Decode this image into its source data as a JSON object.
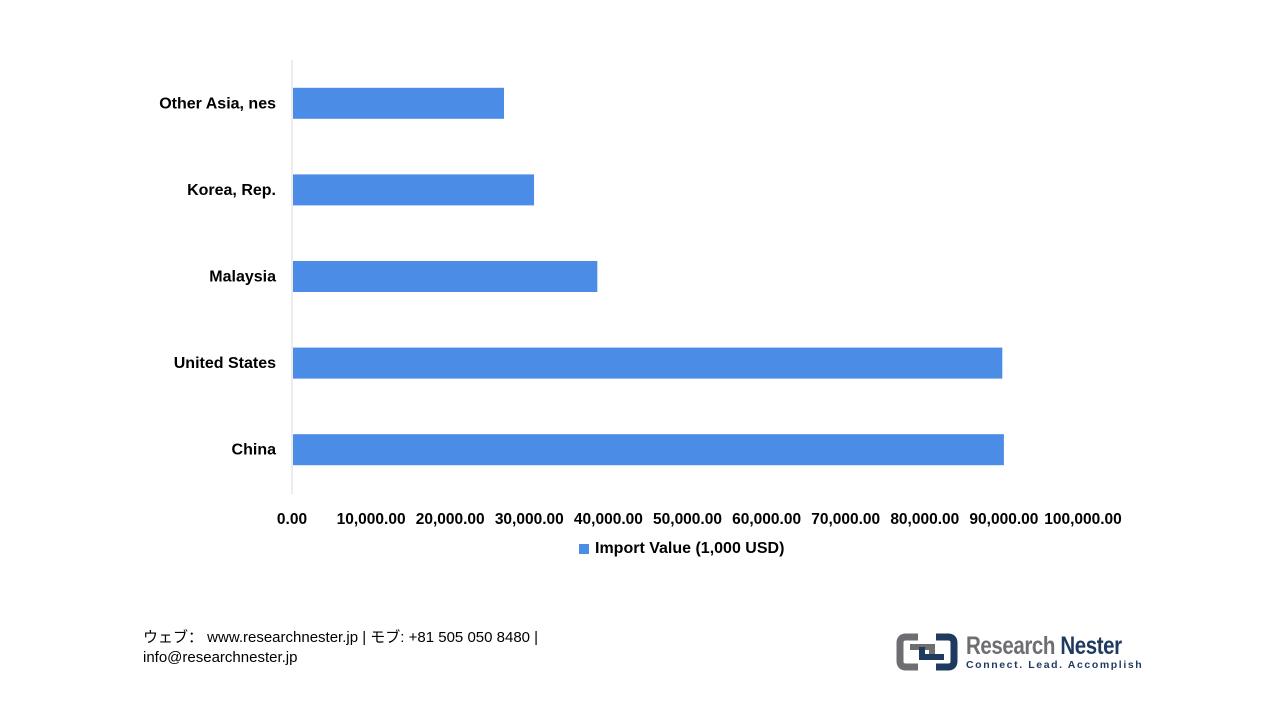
{
  "chart_data": {
    "type": "bar",
    "orientation": "horizontal",
    "categories": [
      "Other Asia, nes",
      "Korea, Rep.",
      "Malaysia",
      "United States",
      "China"
    ],
    "series": [
      {
        "name": "Import Value (1,000 USD)",
        "values": [
          26800,
          30600,
          38600,
          89800,
          90000
        ],
        "color": "#4a8ce6"
      }
    ],
    "xlim": [
      0,
      100000
    ],
    "x_ticks": [
      "0.00",
      "10,000.00",
      "20,000.00",
      "30,000.00",
      "40,000.00",
      "50,000.00",
      "60,000.00",
      "70,000.00",
      "80,000.00",
      "90,000.00",
      "100,000.00"
    ],
    "legend_position": "bottom",
    "grid": false
  },
  "legend": {
    "label": "Import Value (1,000 USD)",
    "color": "#4a8ce6"
  },
  "footer": {
    "line1": "ウェブ： www.researchnester.jp | モブ: +81 505 050 8480 |",
    "line2": "info@researchnester.jp"
  },
  "logo": {
    "word1": "Research",
    "word2": "Nester",
    "tagline": "Connect. Lead. Accomplish"
  }
}
